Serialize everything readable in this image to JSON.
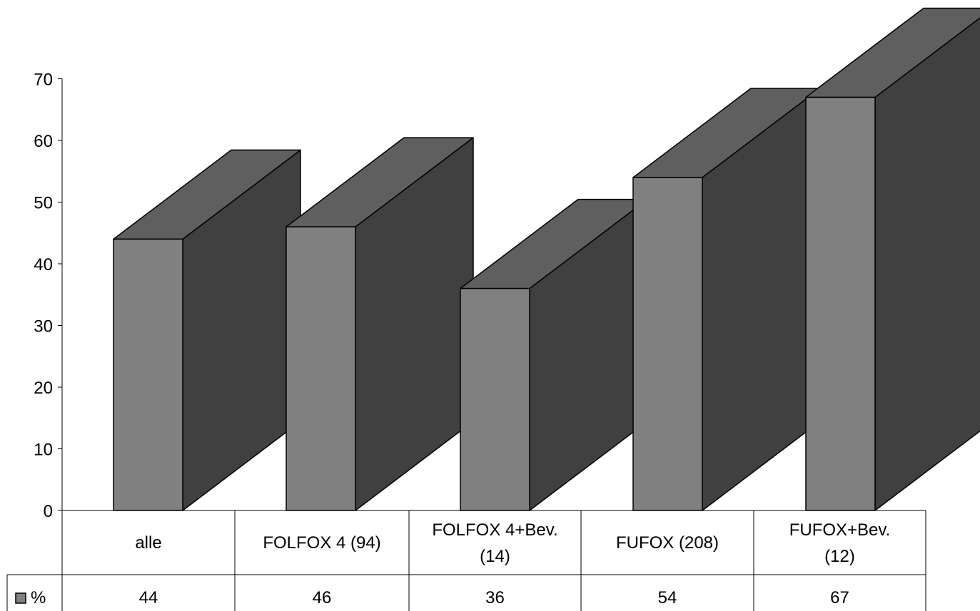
{
  "chart_data": {
    "type": "bar",
    "style": "3d-column-with-data-table",
    "categories": [
      [
        "alle"
      ],
      [
        "FOLFOX 4 (94)"
      ],
      [
        "FOLFOX 4+Bev.",
        "(14)"
      ],
      [
        "FUFOX (208)"
      ],
      [
        "FUFOX+Bev.",
        "(12)"
      ]
    ],
    "series": [
      {
        "name": "%",
        "values": [
          44,
          46,
          36,
          54,
          67
        ]
      }
    ],
    "ylim": [
      0,
      70
    ],
    "yticks": [
      0,
      10,
      20,
      30,
      40,
      50,
      60,
      70
    ],
    "grid": false,
    "legend": "data-table-left",
    "colors": {
      "front": "#808080",
      "top": "#5f5f5f",
      "side": "#404040",
      "legend_key": "#808080",
      "stroke": "#000000"
    }
  }
}
